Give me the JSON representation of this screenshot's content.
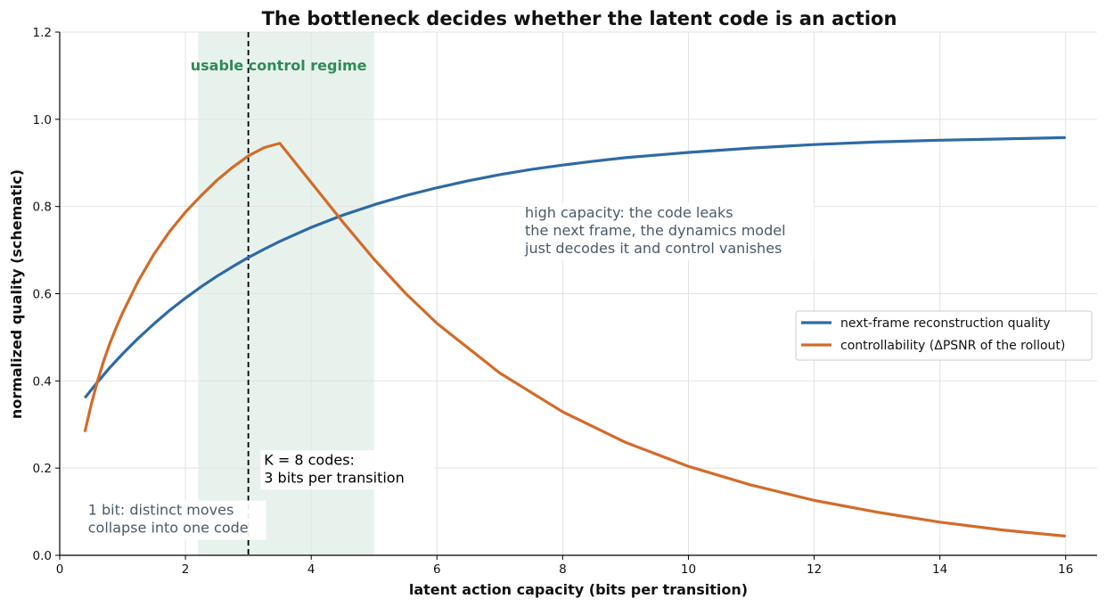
{
  "chart_data": {
    "type": "line",
    "title": "The bottleneck decides whether the latent code is an action",
    "xlabel": "latent action capacity (bits per transition)",
    "ylabel": "normalized quality (schematic)",
    "xlim": [
      0,
      16.5
    ],
    "ylim": [
      0,
      1.2
    ],
    "xticks": [
      0,
      2,
      4,
      6,
      8,
      10,
      12,
      14,
      16
    ],
    "yticks": [
      0.0,
      0.2,
      0.4,
      0.6,
      0.8,
      1.0,
      1.2
    ],
    "xtick_labels": [
      "0",
      "2",
      "4",
      "6",
      "8",
      "10",
      "12",
      "14",
      "16"
    ],
    "ytick_labels": [
      "0.0",
      "0.2",
      "0.4",
      "0.6",
      "0.8",
      "1.0",
      "1.2"
    ],
    "grid": true,
    "legend_position": "center-right",
    "shaded_region": {
      "x": [
        2.2,
        5.0
      ],
      "label": "usable control regime",
      "color": "#2e8b57"
    },
    "vline": {
      "x": 3,
      "style": "dashed",
      "color": "#000000"
    },
    "series": [
      {
        "name": "next-frame reconstruction quality",
        "color": "#2e6aa3",
        "x": [
          0.4,
          0.6,
          0.8,
          1.0,
          1.25,
          1.5,
          1.75,
          2.0,
          2.25,
          2.5,
          2.75,
          3.0,
          3.25,
          3.5,
          3.75,
          4.0,
          4.5,
          5.0,
          5.5,
          6.0,
          6.5,
          7.0,
          7.5,
          8.0,
          8.5,
          9.0,
          9.5,
          10.0,
          11.0,
          12.0,
          13.0,
          14.0,
          15.0,
          16.0
        ],
        "y": [
          0.361,
          0.397,
          0.431,
          0.462,
          0.498,
          0.531,
          0.562,
          0.59,
          0.616,
          0.64,
          0.662,
          0.683,
          0.702,
          0.72,
          0.736,
          0.752,
          0.78,
          0.804,
          0.825,
          0.843,
          0.859,
          0.873,
          0.885,
          0.895,
          0.904,
          0.912,
          0.918,
          0.924,
          0.934,
          0.942,
          0.948,
          0.952,
          0.955,
          0.958
        ]
      },
      {
        "name": "controllability (ΔPSNR of the rollout)",
        "color": "#d26b2a",
        "x": [
          0.4,
          0.5,
          0.6,
          0.7,
          0.8,
          0.9,
          1.0,
          1.25,
          1.5,
          1.75,
          2.0,
          2.25,
          2.5,
          2.75,
          3.0,
          3.25,
          3.5,
          4.0,
          4.5,
          5.0,
          5.5,
          6.0,
          7.0,
          8.0,
          9.0,
          10.0,
          11.0,
          12.0,
          13.0,
          14.0,
          15.0,
          16.0
        ],
        "y": [
          0.283,
          0.345,
          0.399,
          0.446,
          0.487,
          0.523,
          0.556,
          0.629,
          0.691,
          0.743,
          0.787,
          0.825,
          0.86,
          0.89,
          0.916,
          0.935,
          0.945,
          0.855,
          0.765,
          0.679,
          0.601,
          0.532,
          0.418,
          0.329,
          0.259,
          0.204,
          0.161,
          0.126,
          0.099,
          0.076,
          0.058,
          0.044
        ]
      }
    ],
    "annotations": [
      {
        "lines": [
          "usable control regime"
        ],
        "x": 2.08,
        "y": 1.112,
        "color": "#2e8b57",
        "bold": true
      },
      {
        "lines": [
          "high capacity: the code leaks",
          "the next frame, the dynamics model",
          "just decodes it and control vanishes"
        ],
        "x": 7.4,
        "y": 0.775,
        "color": "#4a5a68",
        "bold": false
      },
      {
        "lines": [
          "K = 8 codes:",
          "3 bits per transition"
        ],
        "x": 3.25,
        "y": 0.208,
        "color": "#000000",
        "bold": false
      },
      {
        "lines": [
          "1 bit: distinct moves",
          "collapse into one code"
        ],
        "x": 0.45,
        "y": 0.093,
        "color": "#4a5a68",
        "bold": false
      }
    ]
  }
}
